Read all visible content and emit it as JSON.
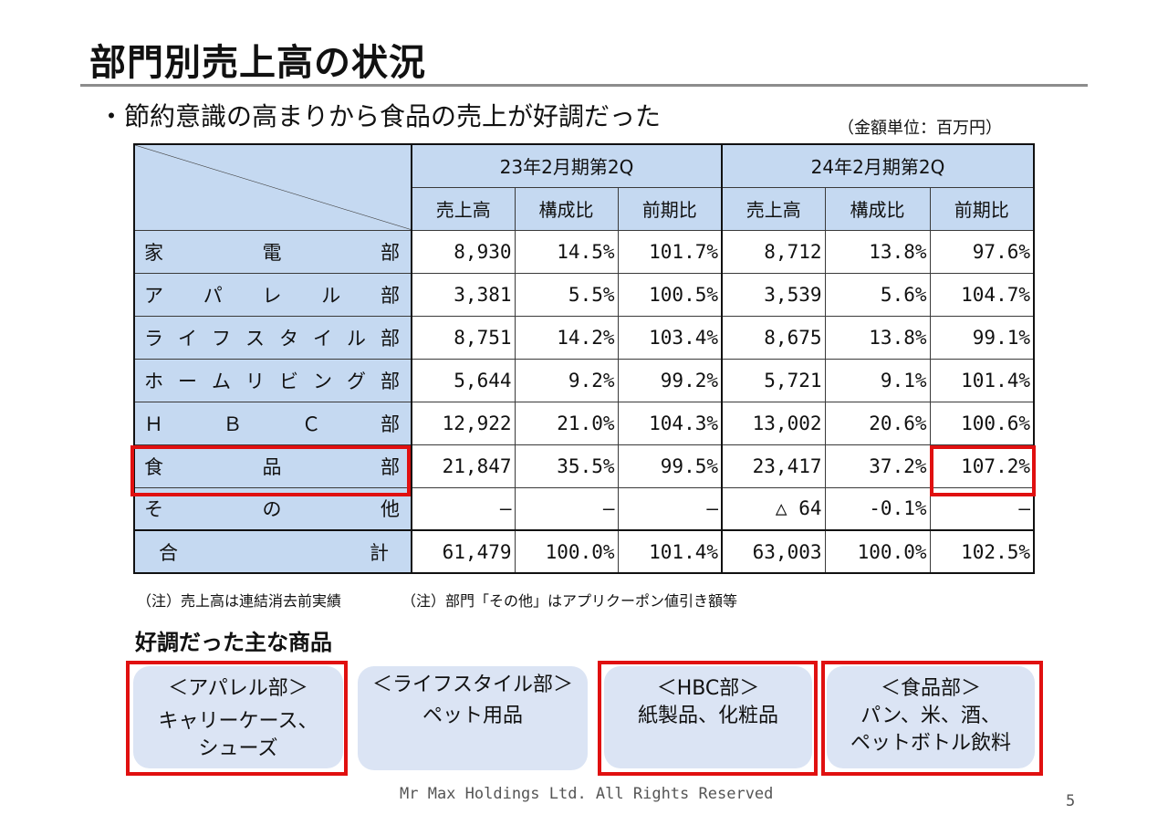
{
  "title": "部門別売上高の状況",
  "bullet": "・節約意識の高まりから食品の売上が好調だった",
  "unit_note": "（金額単位：百万円）",
  "table": {
    "period_headers": [
      "23年2月期第2Q",
      "24年2月期第2Q"
    ],
    "sub_headers": [
      "売上高",
      "構成比",
      "前期比",
      "売上高",
      "構成比",
      "前期比"
    ],
    "rows": [
      {
        "dept": [
          "家",
          "電",
          "部"
        ],
        "values": [
          "8,930",
          "14.5%",
          "101.7%",
          "8,712",
          "13.8%",
          "97.6%"
        ]
      },
      {
        "dept": [
          "ア",
          "パ",
          "レ",
          "ル",
          "部"
        ],
        "values": [
          "3,381",
          "5.5%",
          "100.5%",
          "3,539",
          "5.6%",
          "104.7%"
        ]
      },
      {
        "dept": [
          "ラ",
          "イ",
          "フ",
          "ス",
          "タ",
          "イ",
          "ル",
          "部"
        ],
        "values": [
          "8,751",
          "14.2%",
          "103.4%",
          "8,675",
          "13.8%",
          "99.1%"
        ]
      },
      {
        "dept": [
          "ホ",
          "ー",
          "ム",
          "リ",
          "ビ",
          "ン",
          "グ",
          "部"
        ],
        "values": [
          "5,644",
          "9.2%",
          "99.2%",
          "5,721",
          "9.1%",
          "101.4%"
        ]
      },
      {
        "dept": [
          "Ｈ",
          "Ｂ",
          "Ｃ",
          "部"
        ],
        "values": [
          "12,922",
          "21.0%",
          "104.3%",
          "13,002",
          "20.6%",
          "100.6%"
        ]
      },
      {
        "dept": [
          "食",
          "品",
          "部"
        ],
        "values": [
          "21,847",
          "35.5%",
          "99.5%",
          "23,417",
          "37.2%",
          "107.2%"
        ]
      },
      {
        "dept": [
          "そ",
          "の",
          "他"
        ],
        "values": [
          "—",
          "—",
          "—",
          "△ 64",
          "-0.1%",
          "—"
        ]
      }
    ],
    "total": {
      "dept": [
        "合",
        "計"
      ],
      "values": [
        "61,479",
        "100.0%",
        "101.4%",
        "63,003",
        "100.0%",
        "102.5%"
      ]
    }
  },
  "notes": [
    "（注）売上高は連結消去前実績",
    "（注）部門「その他」はアプリクーポン値引き額等"
  ],
  "products_heading": "好調だった主な商品",
  "products": [
    {
      "dept": "＜アパレル部＞",
      "lines": [
        "キャリーケース、",
        "シューズ"
      ]
    },
    {
      "dept": "＜ライフスタイル部＞",
      "lines": [
        "ペット用品"
      ]
    },
    {
      "dept": "＜HBC部＞",
      "lines": [
        "紙製品、化粧品"
      ]
    },
    {
      "dept": "＜食品部＞",
      "lines": [
        "パン、米、酒、",
        "ペットボトル飲料"
      ]
    }
  ],
  "footer": "Mr Max Holdings Ltd. All Rights Reserved",
  "page_number": "5",
  "colors": {
    "header_fill": "#c5d9f1",
    "highlight": "#e01010",
    "card_fill": "#dbe4f4"
  }
}
